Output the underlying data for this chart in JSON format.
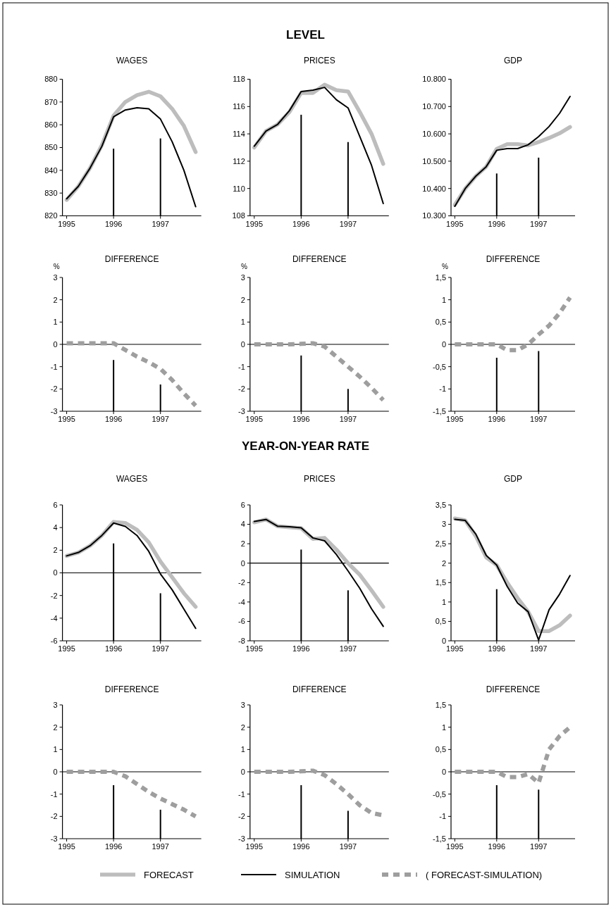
{
  "chart_data": [
    {
      "type": "line",
      "title": "WAGES",
      "annotations": [
        "LEVEL"
      ],
      "legend": "bottom",
      "x": [
        1995,
        1995.25,
        1995.5,
        1995.75,
        1996,
        1996.25,
        1996.5,
        1996.75,
        1997,
        1997.25,
        1997.5,
        1997.75
      ],
      "xlim": [
        1994.91,
        1997.87
      ],
      "xticks": [
        1995,
        1996,
        1997
      ],
      "ylim": [
        820,
        880
      ],
      "yticks": [
        820,
        830,
        840,
        850,
        860,
        870,
        880
      ],
      "series": [
        {
          "name": "FORECAST",
          "color": "#bdbdbd",
          "values": [
            827,
            833,
            841,
            851,
            864,
            870,
            873,
            874.5,
            872.5,
            867,
            859.5,
            848
          ]
        },
        {
          "name": "SIMULATION",
          "color": "#000000",
          "values": [
            827.5,
            833,
            841,
            850.5,
            863.5,
            866.5,
            867.5,
            867,
            862.5,
            852.5,
            840,
            824
          ]
        },
        {
          "type": "bar",
          "color": "#000000",
          "base": [
            null,
            null,
            null,
            null,
            820,
            null,
            null,
            null,
            820,
            null,
            null,
            null
          ],
          "values": [
            null,
            null,
            null,
            null,
            29.5,
            null,
            null,
            null,
            34,
            null,
            null,
            null
          ]
        }
      ]
    },
    {
      "type": "line",
      "title": "PRICES",
      "x": [
        1995,
        1995.25,
        1995.5,
        1995.75,
        1996,
        1996.25,
        1996.5,
        1996.75,
        1997,
        1997.25,
        1997.5,
        1997.75
      ],
      "xlim": [
        1994.91,
        1997.87
      ],
      "xticks": [
        1995,
        1996,
        1997
      ],
      "ylim": [
        108,
        118
      ],
      "yticks": [
        108,
        110,
        112,
        114,
        116,
        118
      ],
      "series": [
        {
          "color": "#bdbdbd",
          "values": [
            113,
            114.2,
            114.7,
            115.6,
            117,
            117,
            117.6,
            117.2,
            117.1,
            115.6,
            114,
            111.8
          ]
        },
        {
          "color": "#000000",
          "values": [
            113.1,
            114.2,
            114.7,
            115.7,
            117.1,
            117.2,
            117.4,
            116.5,
            115.9,
            113.8,
            111.7,
            108.9
          ]
        },
        {
          "type": "bar",
          "color": "#000000",
          "base": [
            null,
            null,
            null,
            null,
            108,
            null,
            null,
            null,
            108,
            null,
            null,
            null
          ],
          "values": [
            null,
            null,
            null,
            null,
            7.4,
            null,
            null,
            null,
            5.4,
            null,
            null,
            null
          ]
        }
      ]
    },
    {
      "type": "line",
      "title": "GDP",
      "x": [
        1995,
        1995.25,
        1995.5,
        1995.75,
        1996,
        1996.25,
        1996.5,
        1996.75,
        1997,
        1997.25,
        1997.5,
        1997.75
      ],
      "xlim": [
        1994.91,
        1997.87
      ],
      "xticks": [
        1995,
        1996,
        1997
      ],
      "ylim": [
        10300,
        10800
      ],
      "yticks": [
        {
          "value": 10300,
          "label": "10.300"
        },
        {
          "value": 10400,
          "label": "10.400"
        },
        {
          "value": 10500,
          "label": "10.500"
        },
        {
          "value": 10600,
          "label": "10.600"
        },
        {
          "value": 10700,
          "label": "10.700"
        },
        {
          "value": 10800,
          "label": "10.800"
        }
      ],
      "series": [
        {
          "color": "#bdbdbd",
          "values": [
            10340,
            10400,
            10445,
            10480,
            10545,
            10562,
            10562,
            10558,
            10570,
            10585,
            10602,
            10625
          ]
        },
        {
          "color": "#000000",
          "values": [
            10335,
            10400,
            10445,
            10480,
            10540,
            10546,
            10546,
            10560,
            10590,
            10627,
            10675,
            10737
          ]
        },
        {
          "type": "bar",
          "color": "#000000",
          "base": [
            null,
            null,
            null,
            null,
            10300,
            null,
            null,
            null,
            10300,
            null,
            null,
            null
          ],
          "values": [
            null,
            null,
            null,
            null,
            155,
            null,
            null,
            null,
            213,
            null,
            null,
            null
          ]
        }
      ]
    },
    {
      "type": "line",
      "title": "DIFFERENCE",
      "ylabel": "%",
      "legend": "bottom",
      "x": [
        1995,
        1995.25,
        1995.5,
        1995.75,
        1996,
        1996.25,
        1996.5,
        1996.75,
        1997,
        1997.25,
        1997.5,
        1997.75
      ],
      "xlim": [
        1994.91,
        1997.87
      ],
      "xticks": [
        1995,
        1996,
        1997
      ],
      "ylim": [
        -3,
        3
      ],
      "yticks": [
        -3,
        -2,
        -1,
        0,
        1,
        2,
        3
      ],
      "ref_lines": [
        {
          "axis": "y",
          "value": 0
        }
      ],
      "series": [
        {
          "name": "( FORECAST-SIMULATION)",
          "color": "#9e9e9e",
          "line_style": "dashed",
          "values": [
            0.05,
            0.05,
            0.05,
            0.05,
            0.05,
            -0.25,
            -0.55,
            -0.8,
            -1.1,
            -1.6,
            -2.2,
            -2.75
          ]
        },
        {
          "type": "bar",
          "color": "#000000",
          "base": [
            null,
            null,
            null,
            null,
            -3,
            null,
            null,
            null,
            -3,
            null,
            null,
            null
          ],
          "values": [
            null,
            null,
            null,
            null,
            2.3,
            null,
            null,
            null,
            1.2,
            null,
            null,
            null
          ]
        }
      ]
    },
    {
      "type": "line",
      "title": "DIFFERENCE",
      "ylabel": "%",
      "x": [
        1995,
        1995.25,
        1995.5,
        1995.75,
        1996,
        1996.25,
        1996.5,
        1996.75,
        1997,
        1997.25,
        1997.5,
        1997.75
      ],
      "xlim": [
        1994.91,
        1997.87
      ],
      "xticks": [
        1995,
        1996,
        1997
      ],
      "ylim": [
        -3,
        3
      ],
      "yticks": [
        -3,
        -2,
        -1,
        0,
        1,
        2,
        3
      ],
      "ref_lines": [
        {
          "axis": "y",
          "value": 0
        }
      ],
      "series": [
        {
          "color": "#9e9e9e",
          "line_style": "dashed",
          "values": [
            0,
            0,
            0,
            0,
            0.02,
            0.05,
            -0.1,
            -0.55,
            -1,
            -1.45,
            -1.95,
            -2.5
          ]
        },
        {
          "type": "bar",
          "color": "#000000",
          "base": [
            null,
            null,
            null,
            null,
            -3,
            null,
            null,
            null,
            -3,
            null,
            null,
            null
          ],
          "values": [
            null,
            null,
            null,
            null,
            2.5,
            null,
            null,
            null,
            1,
            null,
            null,
            null
          ]
        }
      ]
    },
    {
      "type": "line",
      "title": "DIFFERENCE",
      "ylabel": "%",
      "x": [
        1995,
        1995.25,
        1995.5,
        1995.75,
        1996,
        1996.25,
        1996.5,
        1996.75,
        1997,
        1997.25,
        1997.5,
        1997.75
      ],
      "xlim": [
        1994.91,
        1997.87
      ],
      "xticks": [
        1995,
        1996,
        1997
      ],
      "ylim": [
        -1.5,
        1.5
      ],
      "yticks": [
        {
          "value": -1.5,
          "label": "-1,5"
        },
        -1,
        {
          "value": -0.5,
          "label": "-0,5"
        },
        0,
        {
          "value": 0.5,
          "label": "0,5"
        },
        1,
        {
          "value": 1.5,
          "label": "1,5"
        }
      ],
      "ref_lines": [
        {
          "axis": "y",
          "value": 0
        }
      ],
      "series": [
        {
          "color": "#9e9e9e",
          "line_style": "dashed",
          "values": [
            0,
            0,
            0,
            0,
            0,
            -0.13,
            -0.13,
            0,
            0.22,
            0.42,
            0.7,
            1.05
          ]
        },
        {
          "type": "bar",
          "color": "#000000",
          "base": [
            null,
            null,
            null,
            null,
            -1.5,
            null,
            null,
            null,
            -1.5,
            null,
            null,
            null
          ],
          "values": [
            null,
            null,
            null,
            null,
            1.2,
            null,
            null,
            null,
            1.35,
            null,
            null,
            null
          ]
        }
      ]
    },
    {
      "type": "line",
      "title": "WAGES",
      "annotations": [
        "YEAR-ON-YEAR RATE"
      ],
      "x": [
        1995,
        1995.25,
        1995.5,
        1995.75,
        1996,
        1996.25,
        1996.5,
        1996.75,
        1997,
        1997.25,
        1997.5,
        1997.75
      ],
      "xlim": [
        1994.91,
        1997.87
      ],
      "xticks": [
        1995,
        1996,
        1997
      ],
      "ylim": [
        -6,
        6
      ],
      "yticks": [
        -6,
        -4,
        -2,
        0,
        2,
        4,
        6
      ],
      "ref_lines": [
        {
          "axis": "y",
          "value": 0
        }
      ],
      "series": [
        {
          "color": "#bdbdbd",
          "values": [
            1.5,
            1.8,
            2.4,
            3.3,
            4.5,
            4.4,
            3.8,
            2.7,
            1,
            -0.4,
            -1.8,
            -3
          ]
        },
        {
          "color": "#000000",
          "values": [
            1.5,
            1.8,
            2.4,
            3.3,
            4.4,
            4.1,
            3.3,
            1.9,
            -0.1,
            -1.5,
            -3.2,
            -4.9
          ]
        },
        {
          "type": "bar",
          "color": "#000000",
          "base": [
            null,
            null,
            null,
            null,
            -6,
            null,
            null,
            null,
            -6,
            null,
            null,
            null
          ],
          "values": [
            null,
            null,
            null,
            null,
            8.6,
            null,
            null,
            null,
            4.2,
            null,
            null,
            null
          ]
        }
      ]
    },
    {
      "type": "line",
      "title": "PRICES",
      "x": [
        1995,
        1995.25,
        1995.5,
        1995.75,
        1996,
        1996.25,
        1996.5,
        1996.75,
        1997,
        1997.25,
        1997.5,
        1997.75
      ],
      "xlim": [
        1994.91,
        1997.87
      ],
      "xticks": [
        1995,
        1996,
        1997
      ],
      "ylim": [
        -8,
        6
      ],
      "yticks": [
        -8,
        -6,
        -4,
        -2,
        0,
        2,
        4,
        6
      ],
      "ref_lines": [
        {
          "axis": "y",
          "value": 0
        }
      ],
      "series": [
        {
          "color": "#bdbdbd",
          "values": [
            4.2,
            4.5,
            3.8,
            3.7,
            3.6,
            2.5,
            2.6,
            1.4,
            0,
            -1.2,
            -2.8,
            -4.5
          ]
        },
        {
          "color": "#000000",
          "values": [
            4.3,
            4.5,
            3.8,
            3.75,
            3.65,
            2.6,
            2.3,
            0.9,
            -0.8,
            -2.6,
            -4.7,
            -6.5
          ]
        },
        {
          "type": "bar",
          "color": "#000000",
          "base": [
            null,
            null,
            null,
            null,
            -8,
            null,
            null,
            null,
            -8,
            null,
            null,
            null
          ],
          "values": [
            null,
            null,
            null,
            null,
            9.4,
            null,
            null,
            null,
            5.2,
            null,
            null,
            null
          ]
        }
      ]
    },
    {
      "type": "line",
      "title": "GDP",
      "x": [
        1995,
        1995.25,
        1995.5,
        1995.75,
        1996,
        1996.25,
        1996.5,
        1996.75,
        1997,
        1997.25,
        1997.5,
        1997.75
      ],
      "xlim": [
        1994.91,
        1997.87
      ],
      "xticks": [
        1995,
        1996,
        1997
      ],
      "ylim": [
        0,
        3.5
      ],
      "yticks": [
        0,
        {
          "value": 0.5,
          "label": "0,5"
        },
        1,
        {
          "value": 1.5,
          "label": "1,5"
        },
        2,
        {
          "value": 2.5,
          "label": "2,5"
        },
        3,
        {
          "value": 3.5,
          "label": "3,5"
        }
      ],
      "series": [
        {
          "color": "#bdbdbd",
          "values": [
            3.15,
            3.1,
            2.7,
            2.15,
            1.95,
            1.5,
            1.1,
            0.75,
            0.25,
            0.25,
            0.4,
            0.65
          ]
        },
        {
          "color": "#000000",
          "values": [
            3.13,
            3.1,
            2.75,
            2.2,
            1.95,
            1.4,
            0.97,
            0.75,
            0.02,
            0.8,
            1.2,
            1.68
          ]
        },
        {
          "type": "bar",
          "color": "#000000",
          "base": [
            null,
            null,
            null,
            null,
            0,
            null,
            null,
            null,
            null,
            null,
            null,
            null
          ],
          "values": [
            null,
            null,
            null,
            null,
            1.33,
            null,
            null,
            null,
            null,
            null,
            null,
            null
          ]
        }
      ]
    },
    {
      "type": "line",
      "title": "DIFFERENCE",
      "x": [
        1995,
        1995.25,
        1995.5,
        1995.75,
        1996,
        1996.25,
        1996.5,
        1996.75,
        1997,
        1997.25,
        1997.5,
        1997.75
      ],
      "xlim": [
        1994.91,
        1997.87
      ],
      "xticks": [
        1995,
        1996,
        1997
      ],
      "ylim": [
        -3,
        3
      ],
      "yticks": [
        -3,
        -2,
        -1,
        0,
        1,
        2,
        3
      ],
      "ref_lines": [
        {
          "axis": "y",
          "value": 0
        }
      ],
      "series": [
        {
          "color": "#9e9e9e",
          "line_style": "dashed",
          "values": [
            0,
            0,
            0,
            0,
            0,
            -0.2,
            -0.55,
            -0.9,
            -1.2,
            -1.45,
            -1.7,
            -2
          ]
        },
        {
          "type": "bar",
          "color": "#000000",
          "base": [
            null,
            null,
            null,
            null,
            -3,
            null,
            null,
            null,
            -3,
            null,
            null,
            null
          ],
          "values": [
            null,
            null,
            null,
            null,
            2.4,
            null,
            null,
            null,
            1.3,
            null,
            null,
            null
          ]
        }
      ]
    },
    {
      "type": "line",
      "title": "DIFFERENCE",
      "x": [
        1995,
        1995.25,
        1995.5,
        1995.75,
        1996,
        1996.25,
        1996.5,
        1996.75,
        1997,
        1997.25,
        1997.5,
        1997.75
      ],
      "xlim": [
        1994.91,
        1997.87
      ],
      "xticks": [
        1995,
        1996,
        1997
      ],
      "ylim": [
        -3,
        3
      ],
      "yticks": [
        -3,
        -2,
        -1,
        0,
        1,
        2,
        3
      ],
      "ref_lines": [
        {
          "axis": "y",
          "value": 0
        }
      ],
      "series": [
        {
          "color": "#9e9e9e",
          "line_style": "dashed",
          "values": [
            0,
            0,
            0,
            0,
            0.02,
            0.05,
            -0.15,
            -0.55,
            -1,
            -1.5,
            -1.85,
            -1.95
          ]
        },
        {
          "type": "bar",
          "color": "#000000",
          "base": [
            null,
            null,
            null,
            null,
            -3,
            null,
            null,
            null,
            -3,
            null,
            null,
            null
          ],
          "values": [
            null,
            null,
            null,
            null,
            2.4,
            null,
            null,
            null,
            1.25,
            null,
            null,
            null
          ]
        }
      ]
    },
    {
      "type": "line",
      "title": "DIFFERENCE",
      "x": [
        1995,
        1995.25,
        1995.5,
        1995.75,
        1996,
        1996.25,
        1996.5,
        1996.75,
        1997,
        1997.25,
        1997.5,
        1997.75
      ],
      "xlim": [
        1994.91,
        1997.87
      ],
      "xticks": [
        1995,
        1996,
        1997
      ],
      "ylim": [
        -1.5,
        1.5
      ],
      "yticks": [
        {
          "value": -1.5,
          "label": "-1,5"
        },
        -1,
        {
          "value": -0.5,
          "label": "-0,5"
        },
        0,
        {
          "value": 0.5,
          "label": "0,5"
        },
        1,
        {
          "value": 1.5,
          "label": "1,5"
        }
      ],
      "ref_lines": [
        {
          "axis": "y",
          "value": 0
        }
      ],
      "series": [
        {
          "color": "#9e9e9e",
          "line_style": "dashed",
          "values": [
            0,
            0,
            0,
            0,
            0,
            -0.12,
            -0.12,
            -0.05,
            -0.25,
            0.5,
            0.8,
            1
          ]
        },
        {
          "type": "bar",
          "color": "#000000",
          "base": [
            null,
            null,
            null,
            null,
            -1.5,
            null,
            null,
            null,
            -1.5,
            null,
            null,
            null
          ],
          "values": [
            null,
            null,
            null,
            null,
            1.2,
            null,
            null,
            null,
            1.1,
            null,
            null,
            null
          ]
        }
      ]
    }
  ]
}
